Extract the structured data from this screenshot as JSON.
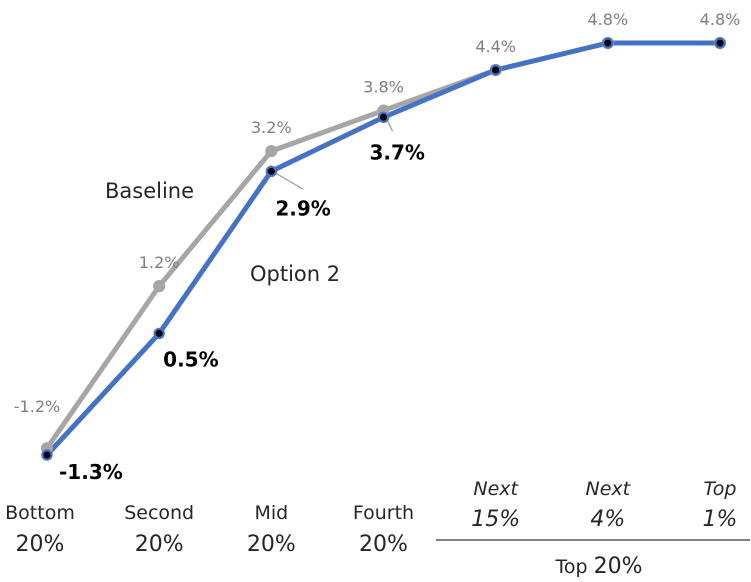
{
  "chart_data": {
    "type": "line",
    "categories": [
      {
        "line1": "Bottom",
        "line2": "20%",
        "italic": false
      },
      {
        "line1": "Second",
        "line2": "20%",
        "italic": false
      },
      {
        "line1": "Mid",
        "line2": "20%",
        "italic": false
      },
      {
        "line1": "Fourth",
        "line2": "20%",
        "italic": false
      },
      {
        "line1": "Next",
        "line2": "15%",
        "italic": true
      },
      {
        "line1": "Next",
        "line2": "4%",
        "italic": true
      },
      {
        "line1": "Top",
        "line2": "1%",
        "italic": true
      }
    ],
    "category_group": {
      "label_prefix": "Top",
      "label_value": "20%",
      "from_index": 4,
      "to_index": 6
    },
    "series": [
      {
        "name": "Baseline",
        "values": [
          -1.2,
          1.2,
          3.2,
          3.8,
          4.4,
          4.8,
          4.8
        ],
        "labels": [
          "-1.2%",
          "1.2%",
          "3.2%",
          "3.8%",
          "4.4%",
          "4.8%",
          "4.8%"
        ],
        "color": "#a6a6a6",
        "marker_color": "#a6a6a6",
        "label_color": "#7f7f7f"
      },
      {
        "name": "Option 2",
        "values": [
          -1.3,
          0.5,
          2.9,
          3.7,
          4.4,
          4.8,
          4.8
        ],
        "labels": [
          "-1.3%",
          "0.5%",
          "2.9%",
          "3.7%",
          "",
          "",
          ""
        ],
        "color": "#4472c4",
        "marker_color": "#000000",
        "label_color": "#000000"
      }
    ],
    "ylim": [
      -1.3,
      4.8
    ],
    "grid": false,
    "legend": "inline"
  }
}
